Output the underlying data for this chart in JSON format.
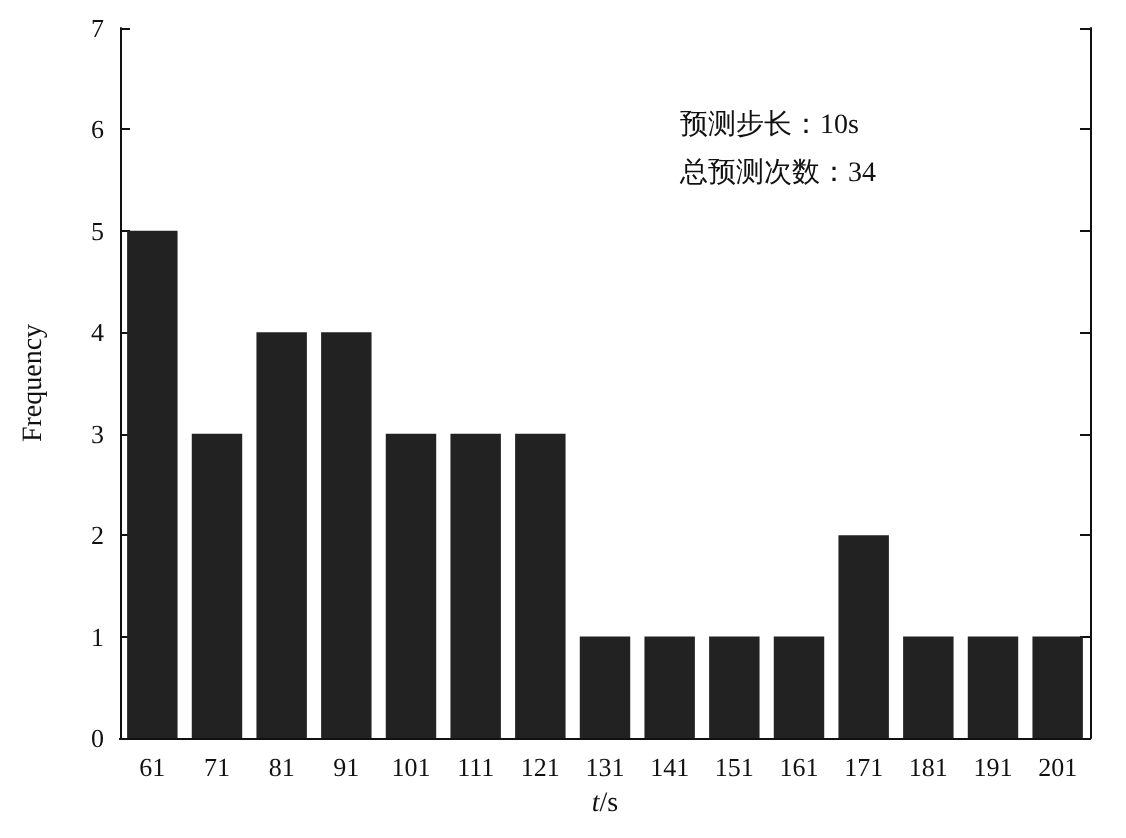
{
  "chart_data": {
    "type": "bar",
    "xlabel": "t/s",
    "ylabel": "Frequency",
    "categories": [
      "61",
      "71",
      "81",
      "91",
      "101",
      "111",
      "121",
      "131",
      "141",
      "151",
      "161",
      "171",
      "181",
      "191",
      "201"
    ],
    "values": [
      5,
      3,
      4,
      4,
      3,
      3,
      3,
      1,
      1,
      1,
      1,
      2,
      1,
      1,
      1
    ],
    "color": "#222222",
    "ylim": [
      0,
      7
    ],
    "yticks": [
      0,
      1,
      2,
      3,
      4,
      5,
      6,
      7
    ],
    "grid": false,
    "annotations": [
      "预测步长：10s",
      "总预测次数：34"
    ]
  }
}
